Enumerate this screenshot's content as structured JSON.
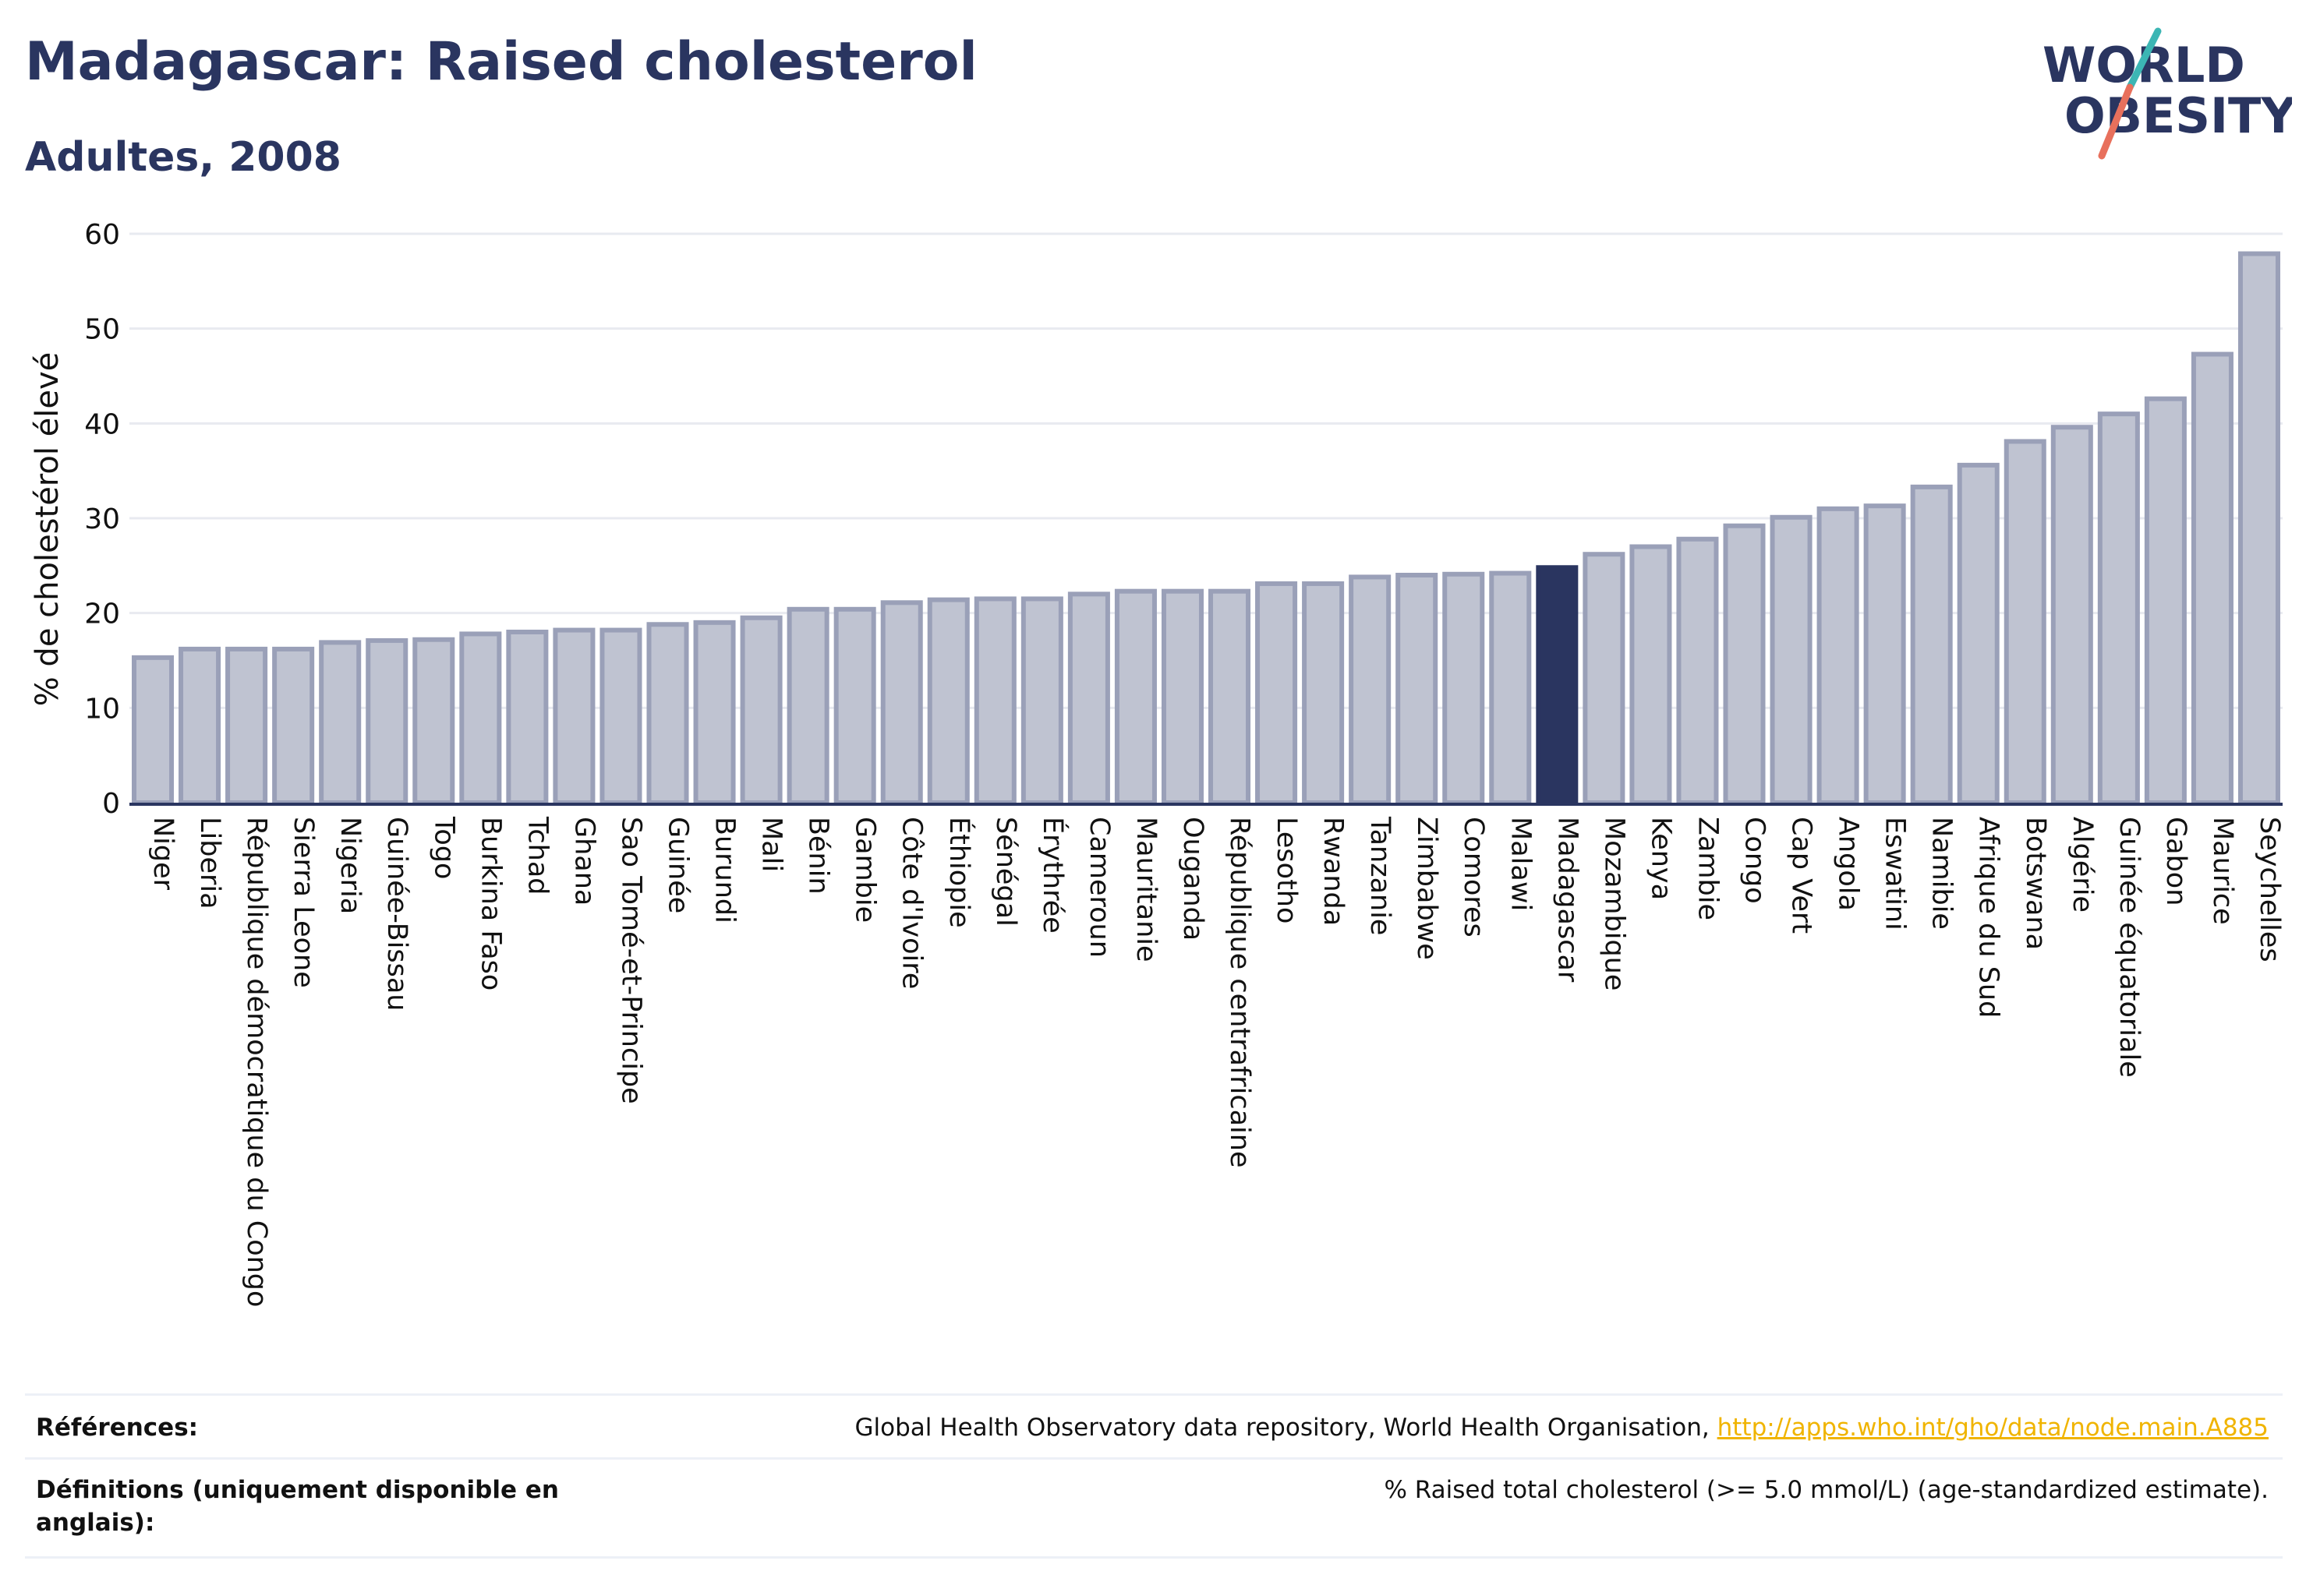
{
  "header": {
    "title": "Madagascar: Raised cholesterol",
    "subtitle": "Adultes, 2008"
  },
  "logo": {
    "line1": "WORLD",
    "line2": "OBESITY",
    "colors": {
      "text": "#2a3560",
      "slash_teal": "#3cb6b4",
      "slash_coral": "#e8705c"
    }
  },
  "colors": {
    "bar_fill": "#bfc3d1",
    "bar_stroke": "#9aa0b8",
    "highlight_fill": "#2a3560",
    "axis": "#2a3560",
    "grid": "#e8eaf0",
    "text": "#111111"
  },
  "chart_data": {
    "type": "bar",
    "ylabel": "% de cholestérol élevé",
    "ylim": [
      0,
      60
    ],
    "yticks": [
      0,
      10,
      20,
      30,
      40,
      50,
      60
    ],
    "grid": true,
    "highlight": "Madagascar",
    "categories": [
      "Niger",
      "Liberia",
      "République démocratique du Congo",
      "Sierra Leone",
      "Nigeria",
      "Guinée-Bissau",
      "Togo",
      "Burkina Faso",
      "Tchad",
      "Ghana",
      "Sao Tomé-et-Principe",
      "Guinée",
      "Burundi",
      "Mali",
      "Bénin",
      "Gambie",
      "Côte d'Ivoire",
      "Éthiopie",
      "Sénégal",
      "Érythrée",
      "Cameroun",
      "Mauritanie",
      "Ouganda",
      "République centrafricaine",
      "Lesotho",
      "Rwanda",
      "Tanzanie",
      "Zimbabwe",
      "Comores",
      "Malawi",
      "Madagascar",
      "Mozambique",
      "Kenya",
      "Zambie",
      "Congo",
      "Cap Vert",
      "Angola",
      "Eswatini",
      "Namibie",
      "Afrique du Sud",
      "Botswana",
      "Algérie",
      "Guinée équatoriale",
      "Gabon",
      "Maurice",
      "Seychelles"
    ],
    "values": [
      15.3,
      16.2,
      16.2,
      16.2,
      16.9,
      17.1,
      17.2,
      17.8,
      18.0,
      18.2,
      18.2,
      18.8,
      19.0,
      19.5,
      20.4,
      20.4,
      21.1,
      21.4,
      21.5,
      21.5,
      22.0,
      22.3,
      22.3,
      22.3,
      23.1,
      23.1,
      23.8,
      24.0,
      24.1,
      24.2,
      24.8,
      26.2,
      27.0,
      27.8,
      29.2,
      30.1,
      31.0,
      31.3,
      33.3,
      35.6,
      38.1,
      39.6,
      41.0,
      42.6,
      47.3,
      57.9
    ]
  },
  "references": [
    {
      "label": "Références:",
      "value": "Global Health Observatory data repository, World Health Organisation, ",
      "link": "http://apps.who.int/gho/data/node.main.A885"
    },
    {
      "label": "Définitions (uniquement disponible en anglais):",
      "value": "% Raised total cholesterol (>= 5.0 mmol/L) (age-standardized estimate).",
      "link": ""
    }
  ]
}
